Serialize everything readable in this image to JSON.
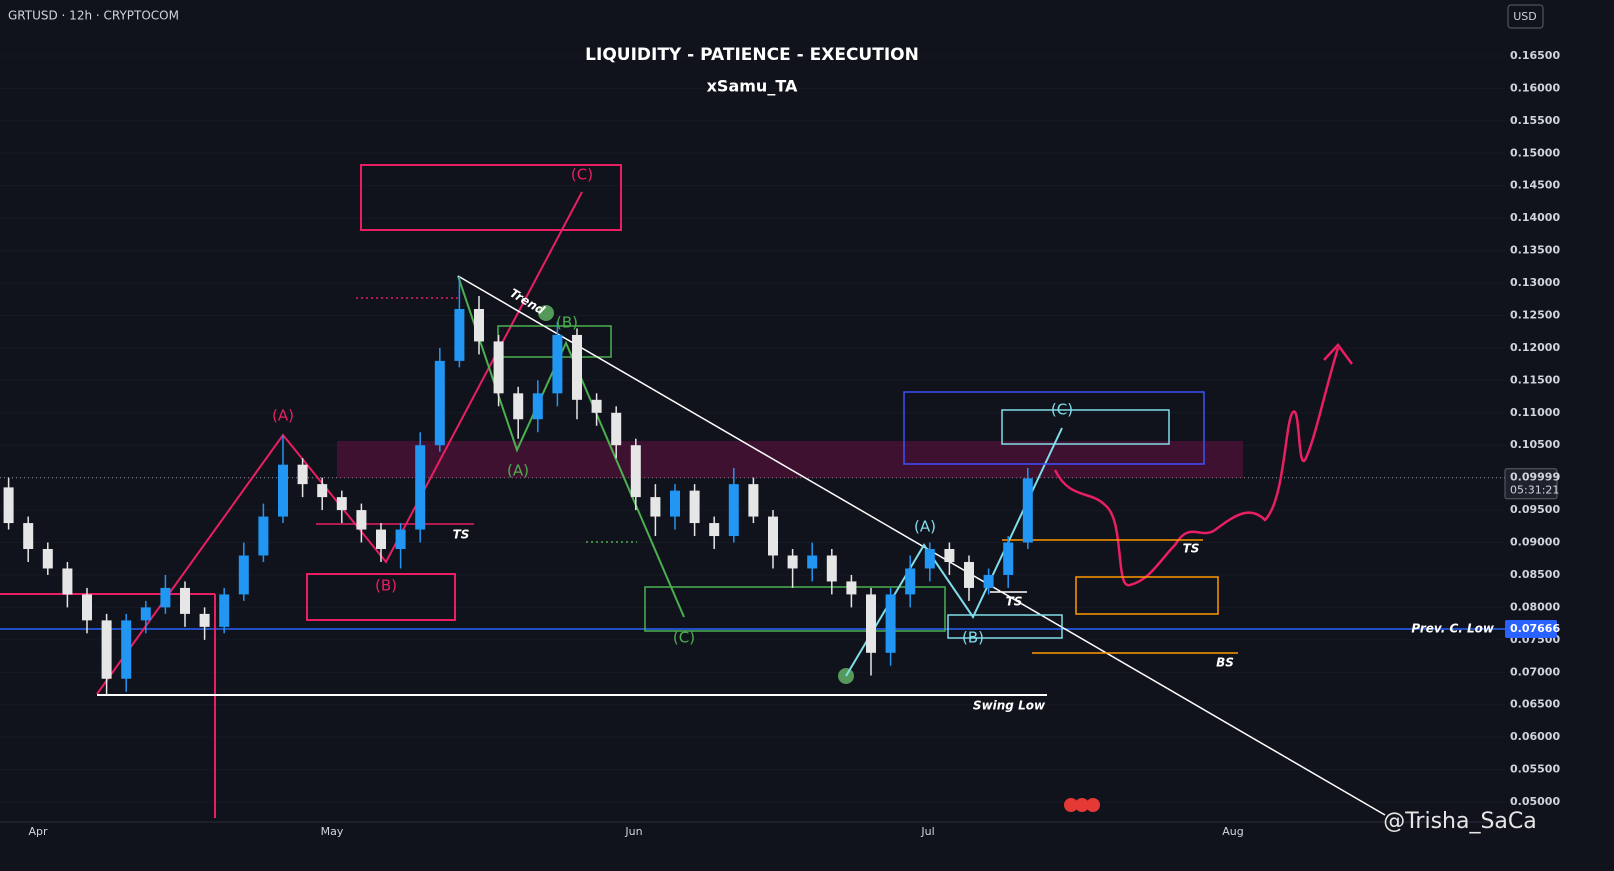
{
  "chart_data": {
    "type": "candlestick",
    "header": "GRTUSD · 12h · CRYPTOCOM",
    "title": "LIQUIDITY - PATIENCE - EXECUTION",
    "subtitle": "xSamu_TA",
    "currency": "USD",
    "watermark": "@Trisha_SaCa",
    "x_labels": [
      "Apr",
      "May",
      "Jun",
      "Jul",
      "Aug"
    ],
    "up_color": "#2196f3",
    "down_color": "#e6e6e6",
    "ylim": [
      0.05,
      0.165
    ],
    "yticks": [
      {
        "value": 0.05,
        "label": "0.05000"
      },
      {
        "value": 0.055,
        "label": "0.05500"
      },
      {
        "value": 0.06,
        "label": "0.06000"
      },
      {
        "value": 0.065,
        "label": "0.06500"
      },
      {
        "value": 0.07,
        "label": "0.07000"
      },
      {
        "value": 0.075,
        "label": "0.07500"
      },
      {
        "value": 0.08,
        "label": "0.08000"
      },
      {
        "value": 0.085,
        "label": "0.08500"
      },
      {
        "value": 0.09,
        "label": "0.09000"
      },
      {
        "value": 0.095,
        "label": "0.09500"
      },
      {
        "value": 0.1,
        "label": "0.10000"
      },
      {
        "value": 0.105,
        "label": "0.10500"
      },
      {
        "value": 0.11,
        "label": "0.11000"
      },
      {
        "value": 0.115,
        "label": "0.11500"
      },
      {
        "value": 0.12,
        "label": "0.12000"
      },
      {
        "value": 0.125,
        "label": "0.12500"
      },
      {
        "value": 0.13,
        "label": "0.13000"
      },
      {
        "value": 0.135,
        "label": "0.13500"
      },
      {
        "value": 0.14,
        "label": "0.14000"
      },
      {
        "value": 0.145,
        "label": "0.14500"
      },
      {
        "value": 0.15,
        "label": "0.15000"
      },
      {
        "value": 0.155,
        "label": "0.15500"
      },
      {
        "value": 0.16,
        "label": "0.16000"
      },
      {
        "value": 0.165,
        "label": "0.16500"
      }
    ],
    "last_price": 0.09999,
    "countdown": "05:31:21",
    "prev_low": 0.07666,
    "prev_low_name": "Prev. C. Low",
    "candles": {
      "open": [
        0.0985,
        0.093,
        0.089,
        0.086,
        0.082,
        0.078,
        0.069,
        0.078,
        0.08,
        0.083,
        0.079,
        0.077,
        0.082,
        0.088,
        0.094,
        0.102,
        0.099,
        0.097,
        0.095,
        0.092,
        0.089,
        0.092,
        0.105,
        0.118,
        0.126,
        0.121,
        0.113,
        0.109,
        0.113,
        0.122,
        0.112,
        0.11,
        0.105,
        0.097,
        0.094,
        0.098,
        0.093,
        0.091,
        0.099,
        0.094,
        0.088,
        0.086,
        0.088,
        0.084,
        0.082,
        0.073,
        0.082,
        0.086,
        0.089,
        0.087,
        0.083,
        0.085,
        0.09
      ],
      "high": [
        0.1,
        0.094,
        0.09,
        0.087,
        0.083,
        0.079,
        0.079,
        0.081,
        0.085,
        0.084,
        0.08,
        0.083,
        0.09,
        0.096,
        0.1065,
        0.103,
        0.1,
        0.098,
        0.096,
        0.093,
        0.093,
        0.107,
        0.12,
        0.131,
        0.128,
        0.122,
        0.114,
        0.115,
        0.124,
        0.123,
        0.113,
        0.111,
        0.106,
        0.099,
        0.099,
        0.099,
        0.094,
        0.1015,
        0.1,
        0.095,
        0.089,
        0.09,
        0.089,
        0.085,
        0.083,
        0.083,
        0.088,
        0.09,
        0.09,
        0.088,
        0.086,
        0.091,
        0.1015
      ],
      "low": [
        0.092,
        0.087,
        0.085,
        0.08,
        0.076,
        0.0665,
        0.067,
        0.076,
        0.079,
        0.077,
        0.075,
        0.076,
        0.081,
        0.087,
        0.093,
        0.097,
        0.095,
        0.093,
        0.09,
        0.087,
        0.086,
        0.09,
        0.104,
        0.117,
        0.119,
        0.111,
        0.106,
        0.107,
        0.111,
        0.109,
        0.108,
        0.103,
        0.095,
        0.091,
        0.092,
        0.091,
        0.089,
        0.09,
        0.093,
        0.086,
        0.083,
        0.084,
        0.082,
        0.08,
        0.0695,
        0.071,
        0.08,
        0.084,
        0.085,
        0.081,
        0.082,
        0.083,
        0.089
      ],
      "close": [
        0.093,
        0.089,
        0.086,
        0.082,
        0.078,
        0.069,
        0.078,
        0.08,
        0.083,
        0.079,
        0.077,
        0.082,
        0.088,
        0.094,
        0.102,
        0.099,
        0.097,
        0.095,
        0.092,
        0.089,
        0.092,
        0.105,
        0.118,
        0.126,
        0.121,
        0.113,
        0.109,
        0.113,
        0.122,
        0.112,
        0.11,
        0.105,
        0.097,
        0.094,
        0.098,
        0.093,
        0.091,
        0.099,
        0.094,
        0.088,
        0.086,
        0.088,
        0.084,
        0.082,
        0.073,
        0.082,
        0.086,
        0.089,
        0.087,
        0.083,
        0.085,
        0.09,
        0.0999
      ]
    },
    "annotations": [
      "(C)",
      "(A)",
      "(B)",
      "TS",
      "(B)",
      "(A)",
      "(C)",
      "(A)",
      "(B)",
      "(C)",
      "TS",
      "TS",
      "BS",
      "Swing Low",
      "Trend"
    ]
  }
}
